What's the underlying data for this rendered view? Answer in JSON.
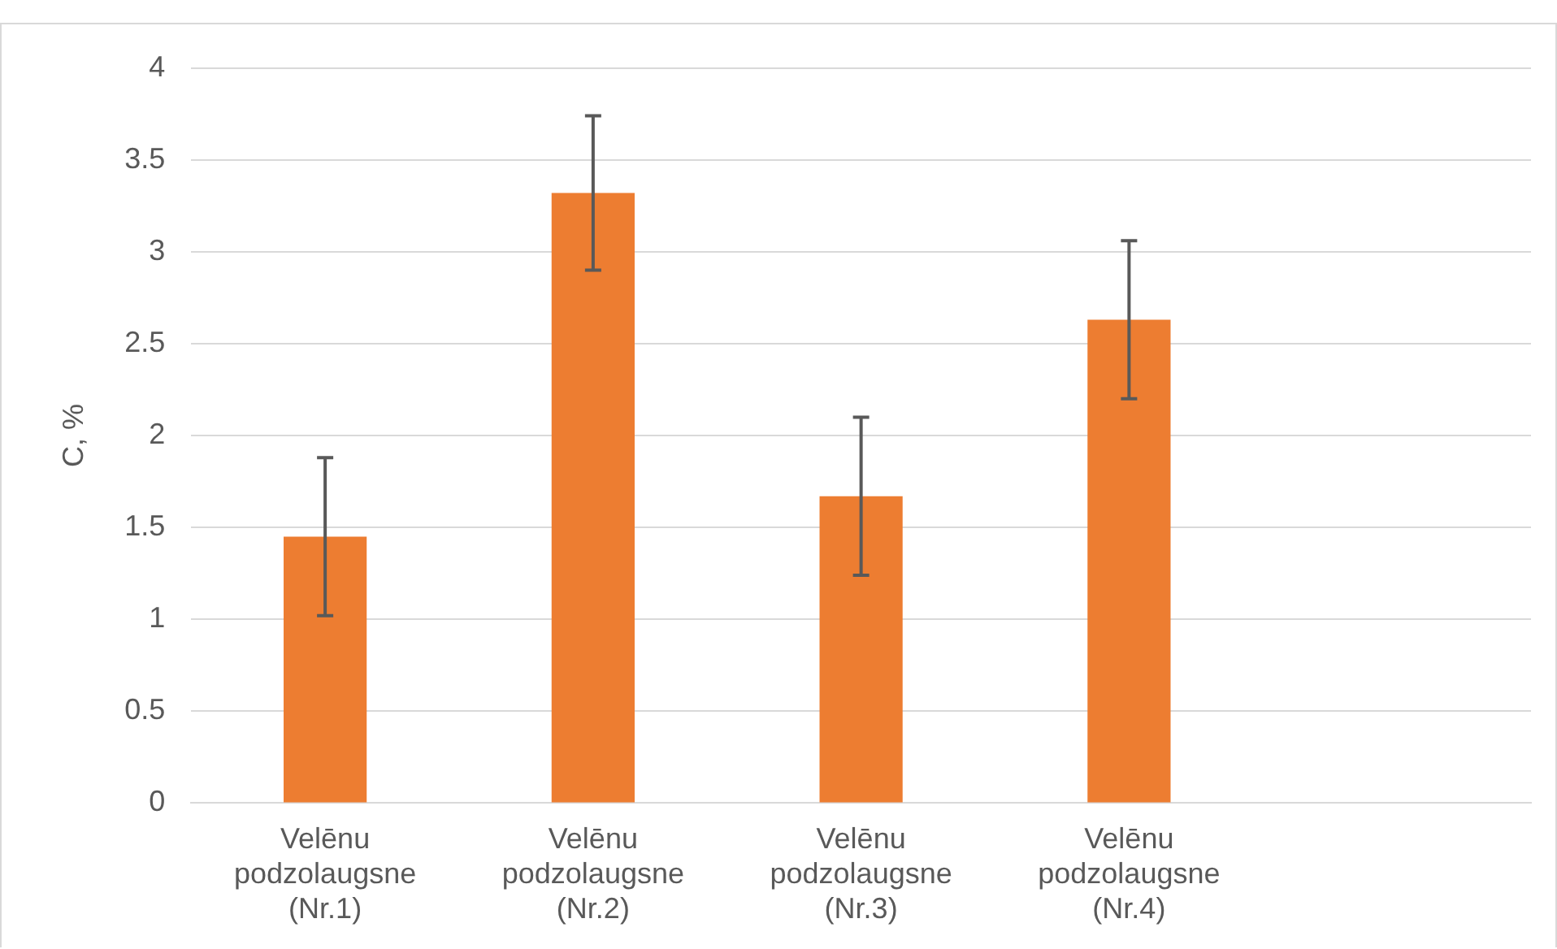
{
  "chart_data": {
    "type": "bar",
    "ylabel": "C, %",
    "categories": [
      "Velēnu podzolaugsne (Nr.1)",
      "Velēnu podzolaugsne (Nr.2)",
      "Velēnu podzolaugsne (Nr.3)",
      "Velēnu podzolaugsne (Nr.4)",
      null
    ],
    "values": [
      1.45,
      3.32,
      1.67,
      2.63,
      null
    ],
    "errors": [
      0.43,
      0.42,
      0.43,
      0.43,
      null
    ],
    "color": "#ed7d31",
    "ylim": [
      0,
      4
    ],
    "yticks": [
      0,
      0.5,
      1,
      1.5,
      2,
      2.5,
      3,
      3.5,
      4
    ],
    "grid": "y",
    "legend": false
  }
}
